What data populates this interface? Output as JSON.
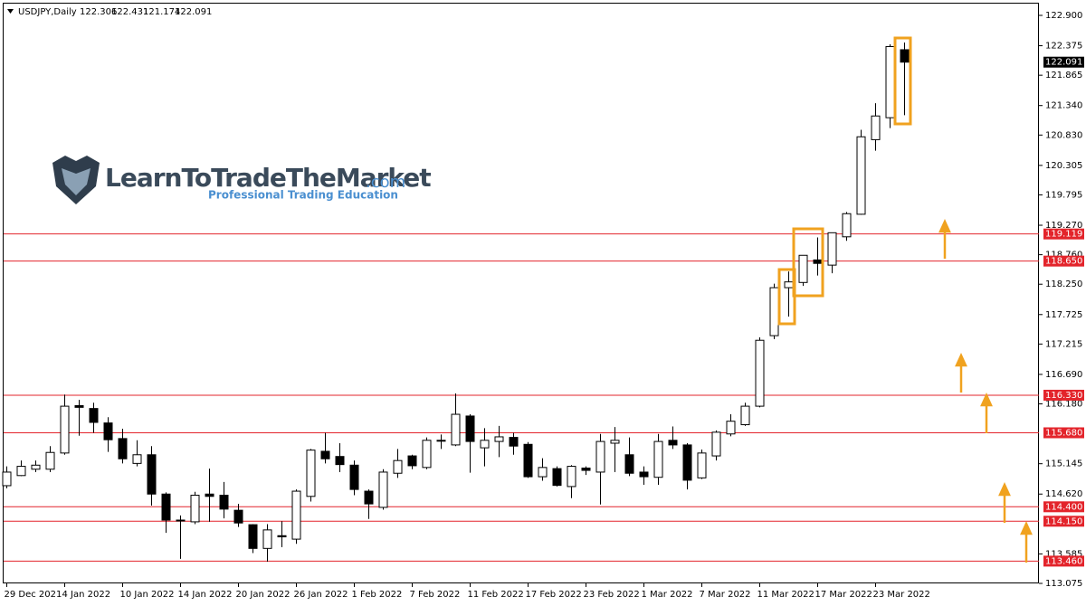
{
  "chart_data": {
    "type": "candlestick",
    "symbol": "USDJPY,Daily",
    "watermark": {
      "name": "LearnToTradeTheMarket",
      "domain": ".com",
      "tagline": "Professional Trading Education"
    },
    "categories": [
      "29 Dec 2021",
      null,
      null,
      null,
      "4 Jan 2022",
      null,
      null,
      null,
      "10 Jan 2022",
      null,
      null,
      null,
      "14 Jan 2022",
      null,
      null,
      null,
      "20 Jan 2022",
      null,
      null,
      null,
      "26 Jan 2022",
      null,
      null,
      null,
      "1 Feb 2022",
      null,
      null,
      null,
      "7 Feb 2022",
      null,
      null,
      null,
      "11 Feb 2022",
      null,
      null,
      null,
      "17 Feb 2022",
      null,
      null,
      null,
      "23 Feb 2022",
      null,
      null,
      null,
      "1 Mar 2022",
      null,
      null,
      null,
      "7 Mar 2022",
      null,
      null,
      null,
      "11 Mar 2022",
      null,
      null,
      null,
      "17 Mar 2022",
      null,
      null,
      null,
      "23 Mar 2022",
      null,
      null
    ],
    "open": [
      114.765,
      114.94,
      115.05,
      115.05,
      115.33,
      116.15,
      116.1,
      115.85,
      115.58,
      115.15,
      115.3,
      114.62,
      114.17,
      114.14,
      114.62,
      114.6,
      114.34,
      114.09,
      113.68,
      113.9,
      113.84,
      114.58,
      115.36,
      115.27,
      115.12,
      114.67,
      114.39,
      114.98,
      115.28,
      115.08,
      115.54,
      115.47,
      115.97,
      115.42,
      115.53,
      115.6,
      115.48,
      114.92,
      115.06,
      114.75,
      115.07,
      115.0,
      115.5,
      115.3,
      115.0,
      114.91,
      115.55,
      115.47,
      114.9,
      115.28,
      115.66,
      115.82,
      116.14,
      117.36,
      118.19,
      118.28,
      118.67,
      118.58,
      119.07,
      119.46,
      120.75,
      121.13,
      122.306
    ],
    "high": [
      115.1,
      115.2,
      115.2,
      115.45,
      116.34,
      116.25,
      116.2,
      115.95,
      115.75,
      115.55,
      115.45,
      114.65,
      114.25,
      114.66,
      115.06,
      114.83,
      114.45,
      114.1,
      114.1,
      114.15,
      114.7,
      115.4,
      115.68,
      115.5,
      115.2,
      114.7,
      115.05,
      115.4,
      115.3,
      115.6,
      115.65,
      116.36,
      116.0,
      115.76,
      115.8,
      115.68,
      115.52,
      115.24,
      115.1,
      115.12,
      115.1,
      115.66,
      115.78,
      115.6,
      115.1,
      115.66,
      115.79,
      115.5,
      115.39,
      115.72,
      116.0,
      116.2,
      117.33,
      118.26,
      118.47,
      118.75,
      119.06,
      119.14,
      119.5,
      120.92,
      121.38,
      122.4,
      122.431
    ],
    "low": [
      114.72,
      114.93,
      115.0,
      115.0,
      115.3,
      115.63,
      115.68,
      115.35,
      115.15,
      115.1,
      114.42,
      113.95,
      113.5,
      114.1,
      114.14,
      114.2,
      114.05,
      113.6,
      113.45,
      113.7,
      113.76,
      114.49,
      115.15,
      115.0,
      114.6,
      114.19,
      114.35,
      114.9,
      115.05,
      115.05,
      115.4,
      115.45,
      114.99,
      115.1,
      115.26,
      115.3,
      114.9,
      114.85,
      114.75,
      114.55,
      114.95,
      114.44,
      115.0,
      114.93,
      114.78,
      114.78,
      115.4,
      114.7,
      114.88,
      115.2,
      115.62,
      115.8,
      116.12,
      117.3,
      117.69,
      118.22,
      118.4,
      118.44,
      119.0,
      119.45,
      120.56,
      120.95,
      121.174
    ],
    "close": [
      115.0,
      115.1,
      115.12,
      115.34,
      116.14,
      116.12,
      115.86,
      115.56,
      115.23,
      115.3,
      114.62,
      114.17,
      114.17,
      114.6,
      114.58,
      114.36,
      114.12,
      113.68,
      114.0,
      113.88,
      114.67,
      115.38,
      115.23,
      115.13,
      114.7,
      114.45,
      115.0,
      115.2,
      115.11,
      115.55,
      115.55,
      116.0,
      115.53,
      115.55,
      115.61,
      115.45,
      114.92,
      115.08,
      114.77,
      115.1,
      115.03,
      115.53,
      115.55,
      114.98,
      114.92,
      115.53,
      115.47,
      114.86,
      115.33,
      115.69,
      115.88,
      116.14,
      117.28,
      118.19,
      118.29,
      118.75,
      118.61,
      119.14,
      119.47,
      120.8,
      121.16,
      122.36,
      122.091
    ],
    "up_color": "#ffffff",
    "down_color": "#000000",
    "wick_color": "#000000",
    "ylim": [
      113.075,
      122.9
    ],
    "yticks": [
      {
        "value": 122.9,
        "label": "122.900"
      },
      122.375,
      121.865,
      {
        "value": 121.34,
        "label": "121.340"
      },
      {
        "value": 120.83,
        "label": "120.830"
      },
      120.305,
      119.795,
      {
        "value": 119.27,
        "label": "119.270"
      },
      {
        "value": 118.76,
        "label": "118.760"
      },
      {
        "value": 118.25,
        "label": "118.250"
      },
      117.725,
      117.215,
      {
        "value": 116.69,
        "label": "116.690"
      },
      {
        "value": 116.18,
        "label": "116.180"
      },
      115.145,
      {
        "value": 114.62,
        "label": "114.620"
      },
      113.585,
      113.075
    ],
    "hlines": [
      119.119,
      {
        "value": 118.65,
        "label": "118.650"
      },
      {
        "value": 116.33,
        "label": "116.330"
      },
      {
        "value": 115.68,
        "label": "115.680"
      },
      {
        "value": 114.4,
        "label": "114.400"
      },
      {
        "value": 114.15,
        "label": "114.150"
      },
      {
        "value": 113.46,
        "label": "113.460"
      }
    ],
    "hline_color": "#e3242b",
    "grid": false
  }
}
